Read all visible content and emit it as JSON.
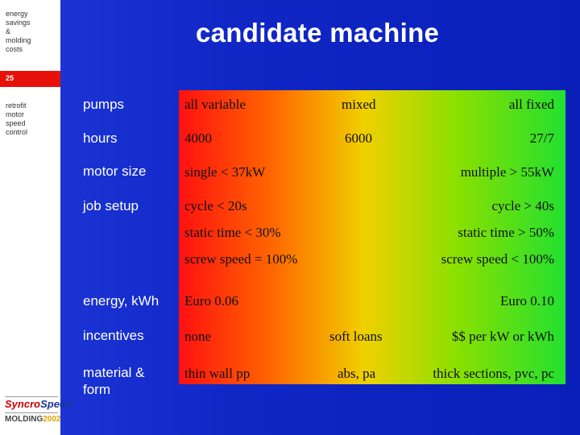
{
  "sidebar": {
    "topic_lines": [
      "energy",
      "savings",
      "&",
      "molding",
      "costs"
    ],
    "slide_number": "25",
    "section_lines": [
      "retrofit",
      "motor",
      "speed",
      "control"
    ]
  },
  "title": "candidate machine",
  "rows": {
    "pumps": {
      "label": "pumps",
      "left": "all variable",
      "mid": "mixed",
      "right": "all fixed"
    },
    "hours": {
      "label": "hours",
      "left": "4000",
      "mid": "6000",
      "right": "27/7"
    },
    "motor": {
      "label": "motor size",
      "left": "single < 37kW",
      "right": "multiple > 55kW"
    },
    "job": {
      "label": "job setup",
      "lines": [
        {
          "left": "cycle < 20s",
          "right": "cycle > 40s"
        },
        {
          "left": "static time < 30%",
          "right": "static time > 50%"
        },
        {
          "left": "screw speed = 100%",
          "right": "screw speed < 100%"
        }
      ]
    },
    "energy": {
      "label": "energy, kWh",
      "left": "Euro 0.06",
      "right": "Euro 0.10"
    },
    "incent": {
      "label": "incentives",
      "left": "none",
      "mid": "soft loans",
      "right": "$$ per kW or kWh"
    },
    "material": {
      "label_lines": [
        "material &",
        "form"
      ],
      "left": "thin wall pp",
      "mid": "abs, pa",
      "right": "thick sections, pvc, pc"
    }
  },
  "logos": {
    "syncro_a": "Syncro",
    "syncro_b": "Speed",
    "molding_a": "MOLDING",
    "molding_b": "2002"
  },
  "colors": {
    "background": "#1027c6",
    "accent_red": "#e00000",
    "gradient_start": "#ff1010",
    "gradient_end": "#22e030"
  }
}
